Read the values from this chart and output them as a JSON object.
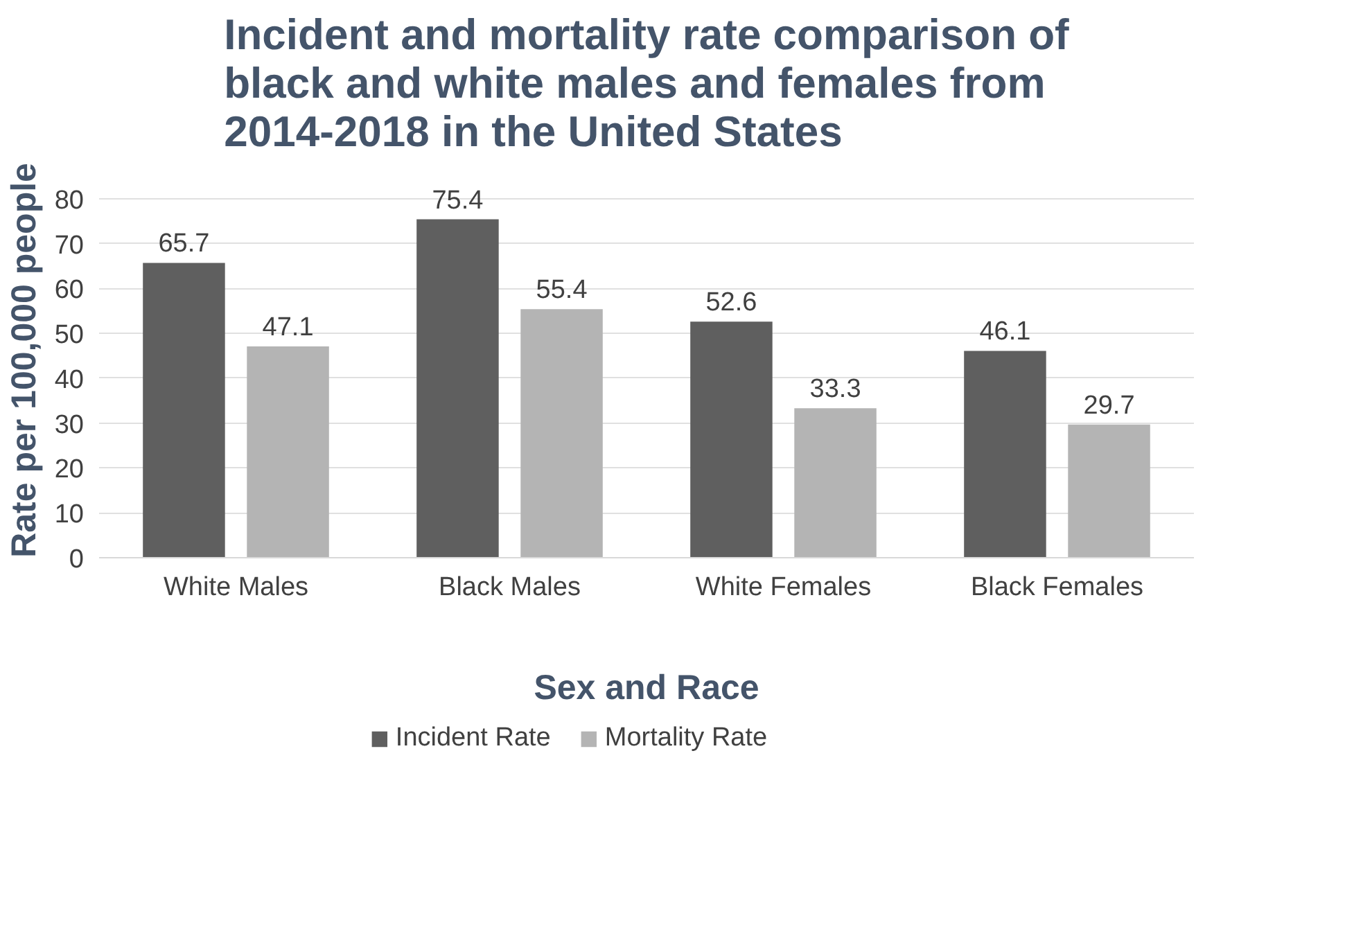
{
  "chart_data": {
    "type": "bar",
    "title": "Incident and mortality rate comparison of\nblack and white males and females from\n2014-2018 in the United States",
    "xlabel": "Sex and Race",
    "ylabel": "Rate per 100,000 people",
    "categories": [
      "White Males",
      "Black Males",
      "White Females",
      "Black Females"
    ],
    "series": [
      {
        "name": "Incident Rate",
        "color": "#5f5f5f",
        "values": [
          65.7,
          75.4,
          52.6,
          46.1
        ]
      },
      {
        "name": "Mortality Rate",
        "color": "#b4b4b4",
        "values": [
          47.1,
          55.4,
          33.3,
          29.7
        ]
      }
    ],
    "ylim": [
      0,
      80
    ],
    "yticks": [
      0,
      10,
      20,
      30,
      40,
      50,
      60,
      70,
      80
    ],
    "grid": "y",
    "data_labels": true,
    "legend": "bottom"
  }
}
